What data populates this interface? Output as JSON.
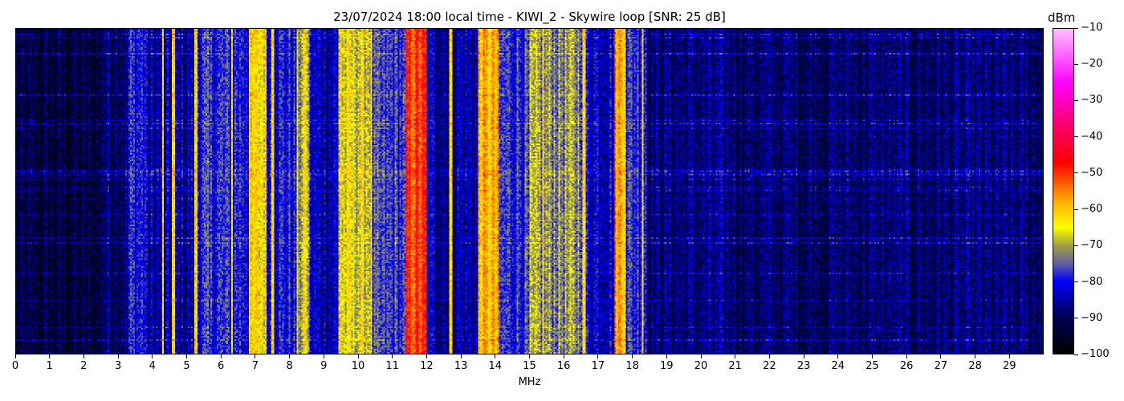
{
  "chart_data": {
    "type": "heatmap",
    "title": "23/07/2024 18:00 local time - KIWI_2 - Skywire loop [SNR: 25 dB]",
    "xlabel": "MHz",
    "ylabel": "",
    "xlim": [
      0,
      30
    ],
    "x_ticks": [
      "0",
      "1",
      "2",
      "3",
      "4",
      "5",
      "6",
      "7",
      "8",
      "9",
      "10",
      "11",
      "12",
      "13",
      "14",
      "15",
      "16",
      "17",
      "18",
      "19",
      "20",
      "21",
      "22",
      "23",
      "24",
      "25",
      "26",
      "27",
      "28",
      "29"
    ],
    "colorbar": {
      "label": "dBm",
      "range": [
        -100,
        -10
      ],
      "ticks": [
        "-10",
        "-20",
        "-30",
        "-40",
        "-50",
        "-60",
        "-70",
        "-80",
        "-90",
        "-100"
      ],
      "colormap": [
        [
          -100,
          "#000000"
        ],
        [
          -90,
          "#000050"
        ],
        [
          -80,
          "#0000ff"
        ],
        [
          -75,
          "#6060a0"
        ],
        [
          -70,
          "#a0a040"
        ],
        [
          -65,
          "#ffff00"
        ],
        [
          -58,
          "#ffb000"
        ],
        [
          -47,
          "#ff0000"
        ],
        [
          -35,
          "#ff0080"
        ],
        [
          -25,
          "#ff00ff"
        ],
        [
          -10,
          "#ffc0ff"
        ]
      ]
    },
    "band_levels_dBm": [
      [
        0,
        2.5,
        -93
      ],
      [
        2.5,
        3.3,
        -88
      ],
      [
        3.3,
        3.8,
        -80
      ],
      [
        3.8,
        5.2,
        -86
      ],
      [
        5.2,
        6.8,
        -79
      ],
      [
        6.8,
        7.3,
        -64
      ],
      [
        7.3,
        8.2,
        -80
      ],
      [
        8.2,
        8.6,
        -70
      ],
      [
        8.6,
        9.4,
        -84
      ],
      [
        9.4,
        10.4,
        -67
      ],
      [
        10.4,
        11.4,
        -78
      ],
      [
        11.4,
        12.0,
        -51
      ],
      [
        12.0,
        13.5,
        -85
      ],
      [
        13.5,
        14.1,
        -60
      ],
      [
        14.1,
        15.0,
        -78
      ],
      [
        15.0,
        16.6,
        -72
      ],
      [
        16.6,
        17.5,
        -82
      ],
      [
        17.5,
        17.8,
        -58
      ],
      [
        17.8,
        18.4,
        -78
      ],
      [
        18.4,
        21.0,
        -88
      ],
      [
        21.0,
        30.0,
        -89
      ]
    ],
    "strong_lines_MHz": [
      4.3,
      4.6,
      5.25,
      6.3,
      7.0,
      7.5,
      8.45,
      9.5,
      10.1,
      11.5,
      11.8,
      12.7,
      13.6,
      13.9,
      15.4,
      16.6,
      17.6,
      17.7,
      18.3
    ]
  }
}
